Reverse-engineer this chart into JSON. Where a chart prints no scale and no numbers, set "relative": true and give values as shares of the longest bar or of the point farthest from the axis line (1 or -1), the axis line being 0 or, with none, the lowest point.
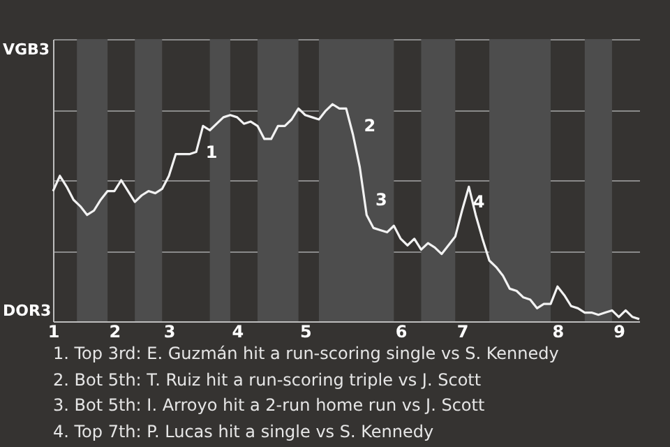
{
  "chart_data": {
    "type": "line",
    "relative": true,
    "categories": [
      "1",
      null,
      null,
      null,
      null,
      null,
      null,
      null,
      null,
      "2",
      null,
      null,
      null,
      null,
      null,
      null,
      null,
      "3",
      null,
      null,
      null,
      null,
      null,
      null,
      null,
      null,
      null,
      "4",
      null,
      null,
      null,
      null,
      null,
      null,
      null,
      null,
      null,
      "5",
      null,
      null,
      null,
      null,
      null,
      null,
      null,
      null,
      null,
      null,
      null,
      null,
      null,
      "6",
      null,
      null,
      null,
      null,
      null,
      null,
      null,
      null,
      "7",
      null,
      null,
      null,
      null,
      null,
      null,
      null,
      null,
      null,
      null,
      null,
      null,
      null,
      "8",
      null,
      null,
      null,
      null,
      null,
      null,
      null,
      null,
      "9",
      null,
      null,
      null
    ],
    "series": [
      {
        "color": "#f2f2f2",
        "values": [
          0.6,
          0.67,
          0.62,
          0.56,
          0.53,
          0.49,
          0.51,
          0.56,
          0.6,
          0.6,
          0.65,
          0.6,
          0.55,
          0.58,
          0.6,
          0.59,
          0.61,
          0.67,
          0.77,
          0.77,
          0.77,
          0.78,
          0.9,
          0.88,
          0.91,
          0.94,
          0.95,
          0.94,
          0.91,
          0.92,
          0.9,
          0.84,
          0.84,
          0.9,
          0.9,
          0.93,
          0.98,
          0.95,
          0.94,
          0.93,
          0.97,
          1,
          0.98,
          0.98,
          0.86,
          0.71,
          0.49,
          0.43,
          0.42,
          0.41,
          0.44,
          0.38,
          0.35,
          0.38,
          0.33,
          0.36,
          0.34,
          0.31,
          0.35,
          0.39,
          0.51,
          0.62,
          0.49,
          0.38,
          0.28,
          0.25,
          0.21,
          0.15,
          0.14,
          0.11,
          0.1,
          0.06,
          0.08,
          0.08,
          0.16,
          0.12,
          0.07,
          0.06,
          0.04,
          0.04,
          0.03,
          0.04,
          0.05,
          0.02,
          0.05,
          0.02,
          0.01
        ]
      }
    ],
    "grid": "y",
    "annotations": [
      "VGB3",
      "DOR3",
      "1",
      "2",
      "3",
      "4",
      "1. Top 3rd: E. Guzmán hit a run-scoring single vs S. Kennedy",
      "2. Bot 5th: T. Ruiz hit a run-scoring triple vs J. Scott",
      "3. Bot 5th: I. Arroyo hit a 2-run home run vs J. Scott",
      "4. Top 7th: P. Lucas hit a single vs S. Kennedy"
    ]
  }
}
